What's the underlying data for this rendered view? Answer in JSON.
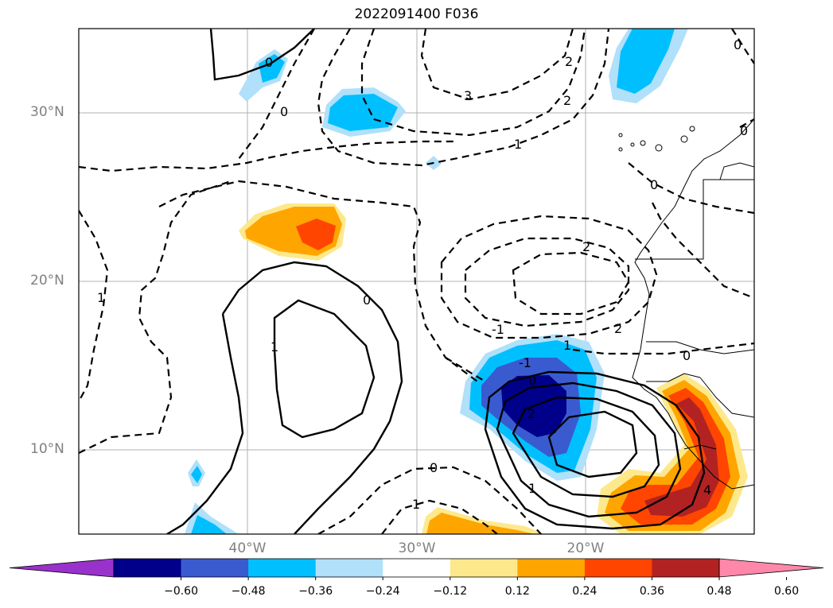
{
  "title": "2022091400 F036",
  "map": {
    "region": "Eastern tropical North Atlantic / West Africa",
    "lat_labels": [
      "30°N",
      "20°N",
      "10°N"
    ],
    "lon_labels": [
      "40°W",
      "30°W",
      "20°W"
    ],
    "contour_labels": [
      "0",
      "0",
      "0",
      "0",
      "0",
      "0",
      "0",
      "0",
      "1",
      "1",
      "1",
      "1",
      "1",
      "2",
      "2",
      "2",
      "2",
      "2",
      "3",
      "-1",
      "-1",
      "0",
      "1",
      "4"
    ]
  },
  "colorbar": {
    "ticks": [
      "−0.60",
      "−0.48",
      "−0.36",
      "−0.24",
      "−0.12",
      "0.12",
      "0.24",
      "0.36",
      "0.48",
      "0.60"
    ],
    "colors": [
      "#9932cc",
      "#00008b",
      "#3a5bd0",
      "#00bfff",
      "#b0e0fa",
      "#ffffff",
      "#fde98c",
      "#ffa500",
      "#ff4500",
      "#b22222",
      "#ff88aa"
    ]
  }
}
